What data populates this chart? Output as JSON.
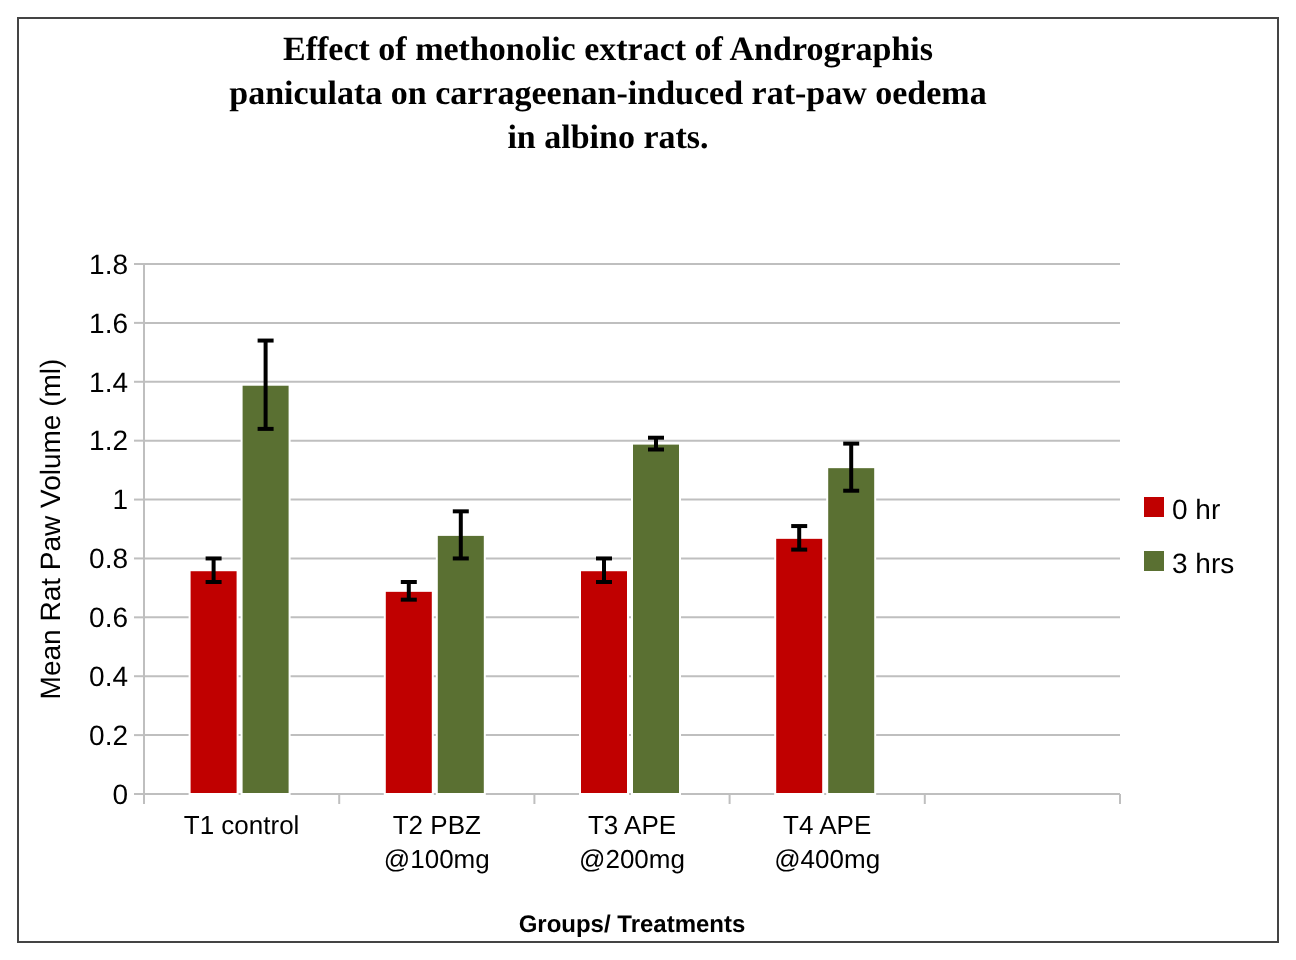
{
  "chart_data": {
    "type": "bar",
    "title": "Effect of methonolic extract of Andrographis paniculata  on carrageenan-induced rat-paw oedema in albino rats.",
    "xlabel": "Groups/ Treatments",
    "ylabel": "Mean Rat Paw Volume (ml)",
    "categories": [
      "T1 control",
      "T2 PBZ @100mg",
      "T3 APE @200mg",
      "T4 APE @400mg",
      null
    ],
    "series": [
      {
        "name": "0 hr",
        "color": "#c00000",
        "values": [
          0.76,
          0.69,
          0.76,
          0.87,
          null
        ],
        "errors": [
          0.04,
          0.03,
          0.04,
          0.04,
          null
        ]
      },
      {
        "name": "3 hrs",
        "color": "#5a7032",
        "values": [
          1.39,
          0.88,
          1.19,
          1.11,
          null
        ],
        "errors": [
          0.15,
          0.08,
          0.02,
          0.08,
          null
        ]
      }
    ],
    "ylim": [
      0,
      1.8
    ],
    "yticks": [
      0,
      {
        "value": 0.2,
        "label": "0.2"
      },
      {
        "value": 0.4,
        "label": "0.4"
      },
      {
        "value": 0.6,
        "label": "0.6"
      },
      {
        "value": 0.8,
        "label": "0.8"
      },
      1,
      {
        "value": 1.2,
        "label": "1.2"
      },
      {
        "value": 1.4,
        "label": "1.4"
      },
      {
        "value": 1.6,
        "label": "1.6"
      },
      {
        "value": 1.8,
        "label": "1.8"
      }
    ],
    "grid": "y",
    "legend": "right"
  }
}
